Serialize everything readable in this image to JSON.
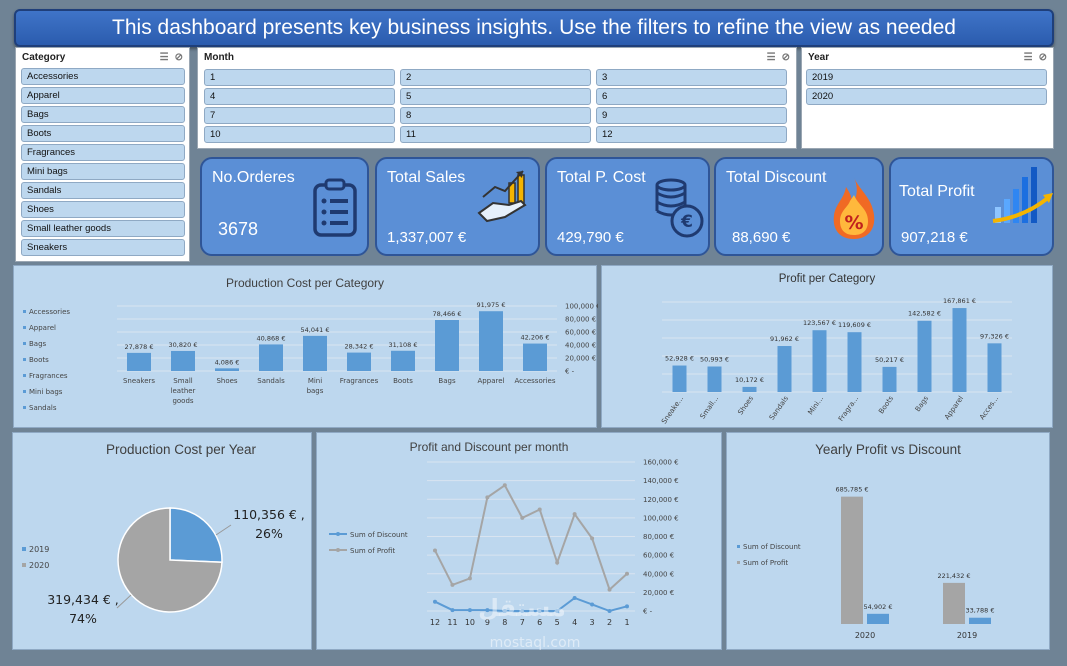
{
  "banner": {
    "text": "This dashboard presents key business insights. Use the filters to refine the view as needed"
  },
  "slicers": {
    "category": {
      "title": "Category",
      "items": [
        "Accessories",
        "Apparel",
        "Bags",
        "Boots",
        "Fragrances",
        "Mini bags",
        "Sandals",
        "Shoes",
        "Small leather goods",
        "Sneakers"
      ]
    },
    "month": {
      "title": "Month",
      "items": [
        "1",
        "2",
        "3",
        "4",
        "5",
        "6",
        "7",
        "8",
        "9",
        "10",
        "11",
        "12"
      ]
    },
    "year": {
      "title": "Year",
      "items": [
        "2019",
        "2020"
      ]
    }
  },
  "kpis": [
    {
      "title": "No.Orderes",
      "value": "3678",
      "icon": "clipboard-icon"
    },
    {
      "title": "Total Sales",
      "value": "1,337,007  €",
      "icon": "money-hand-icon"
    },
    {
      "title": "Total P. Cost",
      "value": "429,790  €",
      "icon": "coins-icon"
    },
    {
      "title": "Total Discount",
      "value": "88,690  €",
      "icon": "discount-flame-icon"
    },
    {
      "title": "Total Profit",
      "value": "907,218  €",
      "icon": "growth-chart-icon"
    }
  ],
  "chart_data": [
    {
      "type": "bar",
      "title": "Production Cost per Category",
      "categories": [
        "Sneakers",
        "Small leather goods",
        "Shoes",
        "Sandals",
        "Mini bags",
        "Fragrances",
        "Boots",
        "Bags",
        "Apparel",
        "Accessories"
      ],
      "values": [
        27878,
        30820,
        4086,
        40868,
        54041,
        28342,
        31108,
        78466,
        91975,
        42206
      ],
      "labels": [
        "27,878 €",
        "30,820 €",
        "4,086 €",
        "40,868 €",
        "54,041 €",
        "28,342 €",
        "31,108 €",
        "78,466 €",
        "91,975 €",
        "42,206 €"
      ],
      "ylim": [
        0,
        100000
      ],
      "yticks": [
        "100,000 €",
        "80,000 €",
        "60,000 €",
        "40,000 €",
        "20,000 €",
        "€ -"
      ],
      "legend": [
        "Accessories",
        "Apparel",
        "Bags",
        "Boots",
        "Fragrances",
        "Mini bags",
        "Sandals"
      ],
      "legend_position": "left"
    },
    {
      "type": "bar",
      "title": "Profit per Category",
      "categories": [
        "Sneake...",
        "Small...",
        "Shoes",
        "Sandals",
        "Mini...",
        "Fragra...",
        "Boots",
        "Bags",
        "Apparel",
        "Acces..."
      ],
      "values": [
        52928,
        50993,
        10172,
        91962,
        123567,
        119609,
        50217,
        142582,
        167861,
        97326
      ],
      "labels": [
        "52,928 €",
        "50,993 €",
        "10,172 €",
        "91,962 €",
        "123,567 €",
        "119,609 €",
        "50,217 €",
        "142,582 €",
        "167,861 €",
        "97,326 €"
      ],
      "ylim": [
        0,
        180000
      ]
    },
    {
      "type": "pie",
      "title": "Production Cost per Year",
      "categories": [
        "2019",
        "2020"
      ],
      "values": [
        110356,
        319434
      ],
      "percent": [
        26,
        74
      ],
      "labels": [
        [
          "110,356  € ,",
          "26%"
        ],
        [
          "319,434  € ,",
          "74%"
        ]
      ],
      "colors": [
        "#5b9bd5",
        "#a5a5a5"
      ],
      "legend_position": "left"
    },
    {
      "type": "line",
      "title": "Profit  and Discount per month",
      "x": [
        "12",
        "11",
        "10",
        "9",
        "8",
        "7",
        "6",
        "5",
        "4",
        "3",
        "2",
        "1"
      ],
      "series": [
        {
          "name": "Sum of Discount",
          "color": "#5b9bd5",
          "values": [
            10000,
            1000,
            1000,
            1000,
            0,
            0,
            0,
            0,
            14000,
            7000,
            0,
            5000
          ]
        },
        {
          "name": "Sum of Profit",
          "color": "#a5a5a5",
          "values": [
            65000,
            28000,
            35000,
            122000,
            135000,
            100000,
            109000,
            52000,
            104000,
            78000,
            23000,
            40000
          ]
        }
      ],
      "ylim": [
        0,
        160000
      ],
      "yticks": [
        "160,000 €",
        "140,000 €",
        "120,000 €",
        "100,000 €",
        "80,000 €",
        "60,000 €",
        "40,000 €",
        "20,000 €",
        "€ -"
      ],
      "legend_position": "left"
    },
    {
      "type": "bar",
      "title": "Yearly Profit vs Discount",
      "categories": [
        "2020",
        "2019"
      ],
      "series": [
        {
          "name": "Sum of Profit",
          "color": "#a5a5a5",
          "values": [
            685785,
            221432
          ],
          "labels": [
            "685,785 €",
            "221,432 €"
          ]
        },
        {
          "name": "Sum of Discount",
          "color": "#5b9bd5",
          "values": [
            54902,
            33788
          ],
          "labels": [
            "54,902 €",
            "33,788 €"
          ]
        }
      ],
      "legend": [
        "Sum of Discount",
        "Sum of Profit"
      ],
      "ylim": [
        0,
        700000
      ],
      "legend_position": "left"
    }
  ],
  "watermark": {
    "arabic": "مستقل",
    "latin": "mostaql.com"
  }
}
